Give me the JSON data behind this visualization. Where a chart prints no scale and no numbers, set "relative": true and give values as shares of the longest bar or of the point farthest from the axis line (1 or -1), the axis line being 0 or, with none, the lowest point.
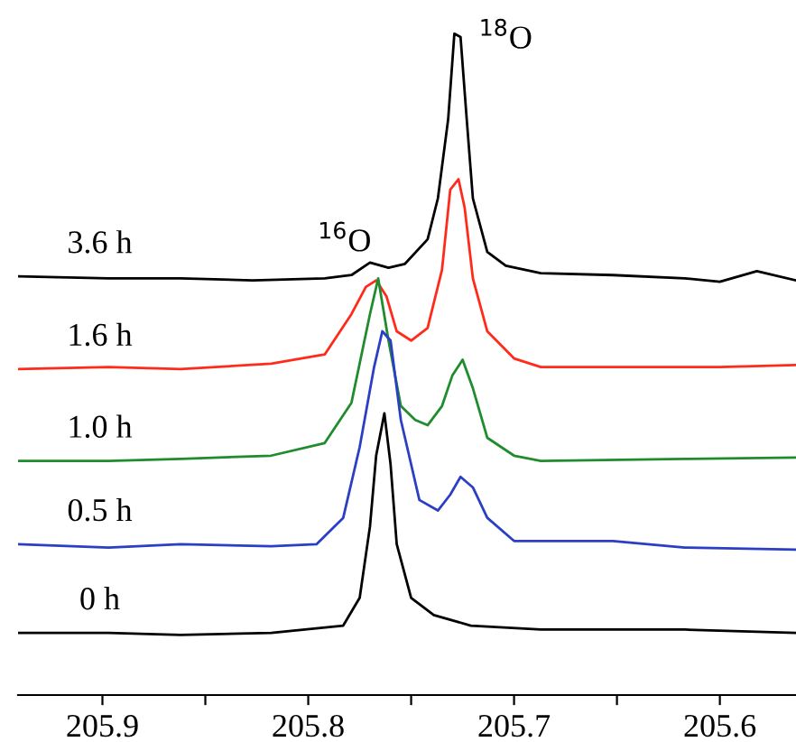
{
  "chart_data": {
    "type": "line",
    "relative": true,
    "xlim": [
      205.941,
      205.563
    ],
    "xticks": [
      205.9,
      {
        "value": 205.85,
        "label": null
      },
      205.8,
      {
        "value": 205.75,
        "label": null
      },
      205.7,
      {
        "value": 205.65,
        "label": null
      },
      205.6
    ],
    "tick_labels": "x",
    "grid": false,
    "legend": false,
    "marker": "none",
    "line_style": "solid",
    "annotations": [
      "$^{18}$O",
      "$^{16}$O"
    ],
    "series": [
      {
        "name": "3.6 h",
        "color": "#000000",
        "x": [
          205.941,
          205.897,
          205.862,
          205.827,
          205.792,
          205.779,
          205.77,
          205.761,
          205.753,
          205.742,
          205.737,
          205.732,
          205.729,
          205.726,
          205.723,
          205.72,
          205.713,
          205.704,
          205.687,
          205.652,
          205.617,
          205.6,
          205.582,
          205.563
        ],
        "values": [
          0.633,
          0.63,
          0.63,
          0.627,
          0.63,
          0.635,
          0.654,
          0.646,
          0.652,
          0.689,
          0.751,
          0.871,
          1.0,
          0.995,
          0.871,
          0.751,
          0.67,
          0.649,
          0.638,
          0.635,
          0.63,
          0.625,
          0.641,
          0.627
        ]
      },
      {
        "name": "1.6 h",
        "color": "#ff2a1a",
        "x": [
          205.941,
          205.897,
          205.862,
          205.818,
          205.792,
          205.779,
          205.772,
          205.767,
          205.762,
          205.757,
          205.75,
          205.742,
          205.735,
          205.731,
          205.727,
          205.724,
          205.72,
          205.713,
          205.7,
          205.687,
          205.652,
          205.6,
          205.563
        ],
        "values": [
          0.493,
          0.496,
          0.493,
          0.501,
          0.515,
          0.576,
          0.617,
          0.627,
          0.603,
          0.55,
          0.536,
          0.555,
          0.643,
          0.764,
          0.78,
          0.737,
          0.63,
          0.55,
          0.509,
          0.496,
          0.496,
          0.496,
          0.499
        ]
      },
      {
        "name": "1.0 h",
        "color": "#1f8c2e",
        "x": [
          205.941,
          205.897,
          205.862,
          205.818,
          205.792,
          205.779,
          205.77,
          205.766,
          205.761,
          205.755,
          205.748,
          205.742,
          205.735,
          205.73,
          205.725,
          205.72,
          205.713,
          205.7,
          205.687,
          205.617,
          205.563
        ],
        "values": [
          0.354,
          0.354,
          0.357,
          0.362,
          0.381,
          0.442,
          0.576,
          0.63,
          0.536,
          0.437,
          0.416,
          0.408,
          0.437,
          0.483,
          0.507,
          0.464,
          0.389,
          0.362,
          0.354,
          0.357,
          0.359
        ]
      },
      {
        "name": "0.5 h",
        "color": "#2a3fc4",
        "x": [
          205.941,
          205.897,
          205.862,
          205.818,
          205.796,
          205.783,
          205.775,
          205.768,
          205.764,
          205.76,
          205.755,
          205.746,
          205.737,
          205.731,
          205.726,
          205.72,
          205.713,
          205.7,
          205.687,
          205.652,
          205.617,
          205.563
        ],
        "values": [
          0.228,
          0.223,
          0.228,
          0.225,
          0.228,
          0.268,
          0.375,
          0.496,
          0.55,
          0.536,
          0.416,
          0.295,
          0.279,
          0.303,
          0.33,
          0.314,
          0.268,
          0.233,
          0.233,
          0.233,
          0.223,
          0.22
        ]
      },
      {
        "name": "0 h",
        "color": "#000000",
        "x": [
          205.941,
          205.897,
          205.862,
          205.818,
          205.783,
          205.775,
          205.77,
          205.767,
          205.763,
          205.76,
          205.757,
          205.75,
          205.739,
          205.721,
          205.687,
          205.617,
          205.563
        ],
        "values": [
          0.094,
          0.094,
          0.091,
          0.094,
          0.105,
          0.147,
          0.255,
          0.362,
          0.426,
          0.349,
          0.228,
          0.147,
          0.121,
          0.105,
          0.099,
          0.099,
          0.094
        ]
      }
    ]
  }
}
